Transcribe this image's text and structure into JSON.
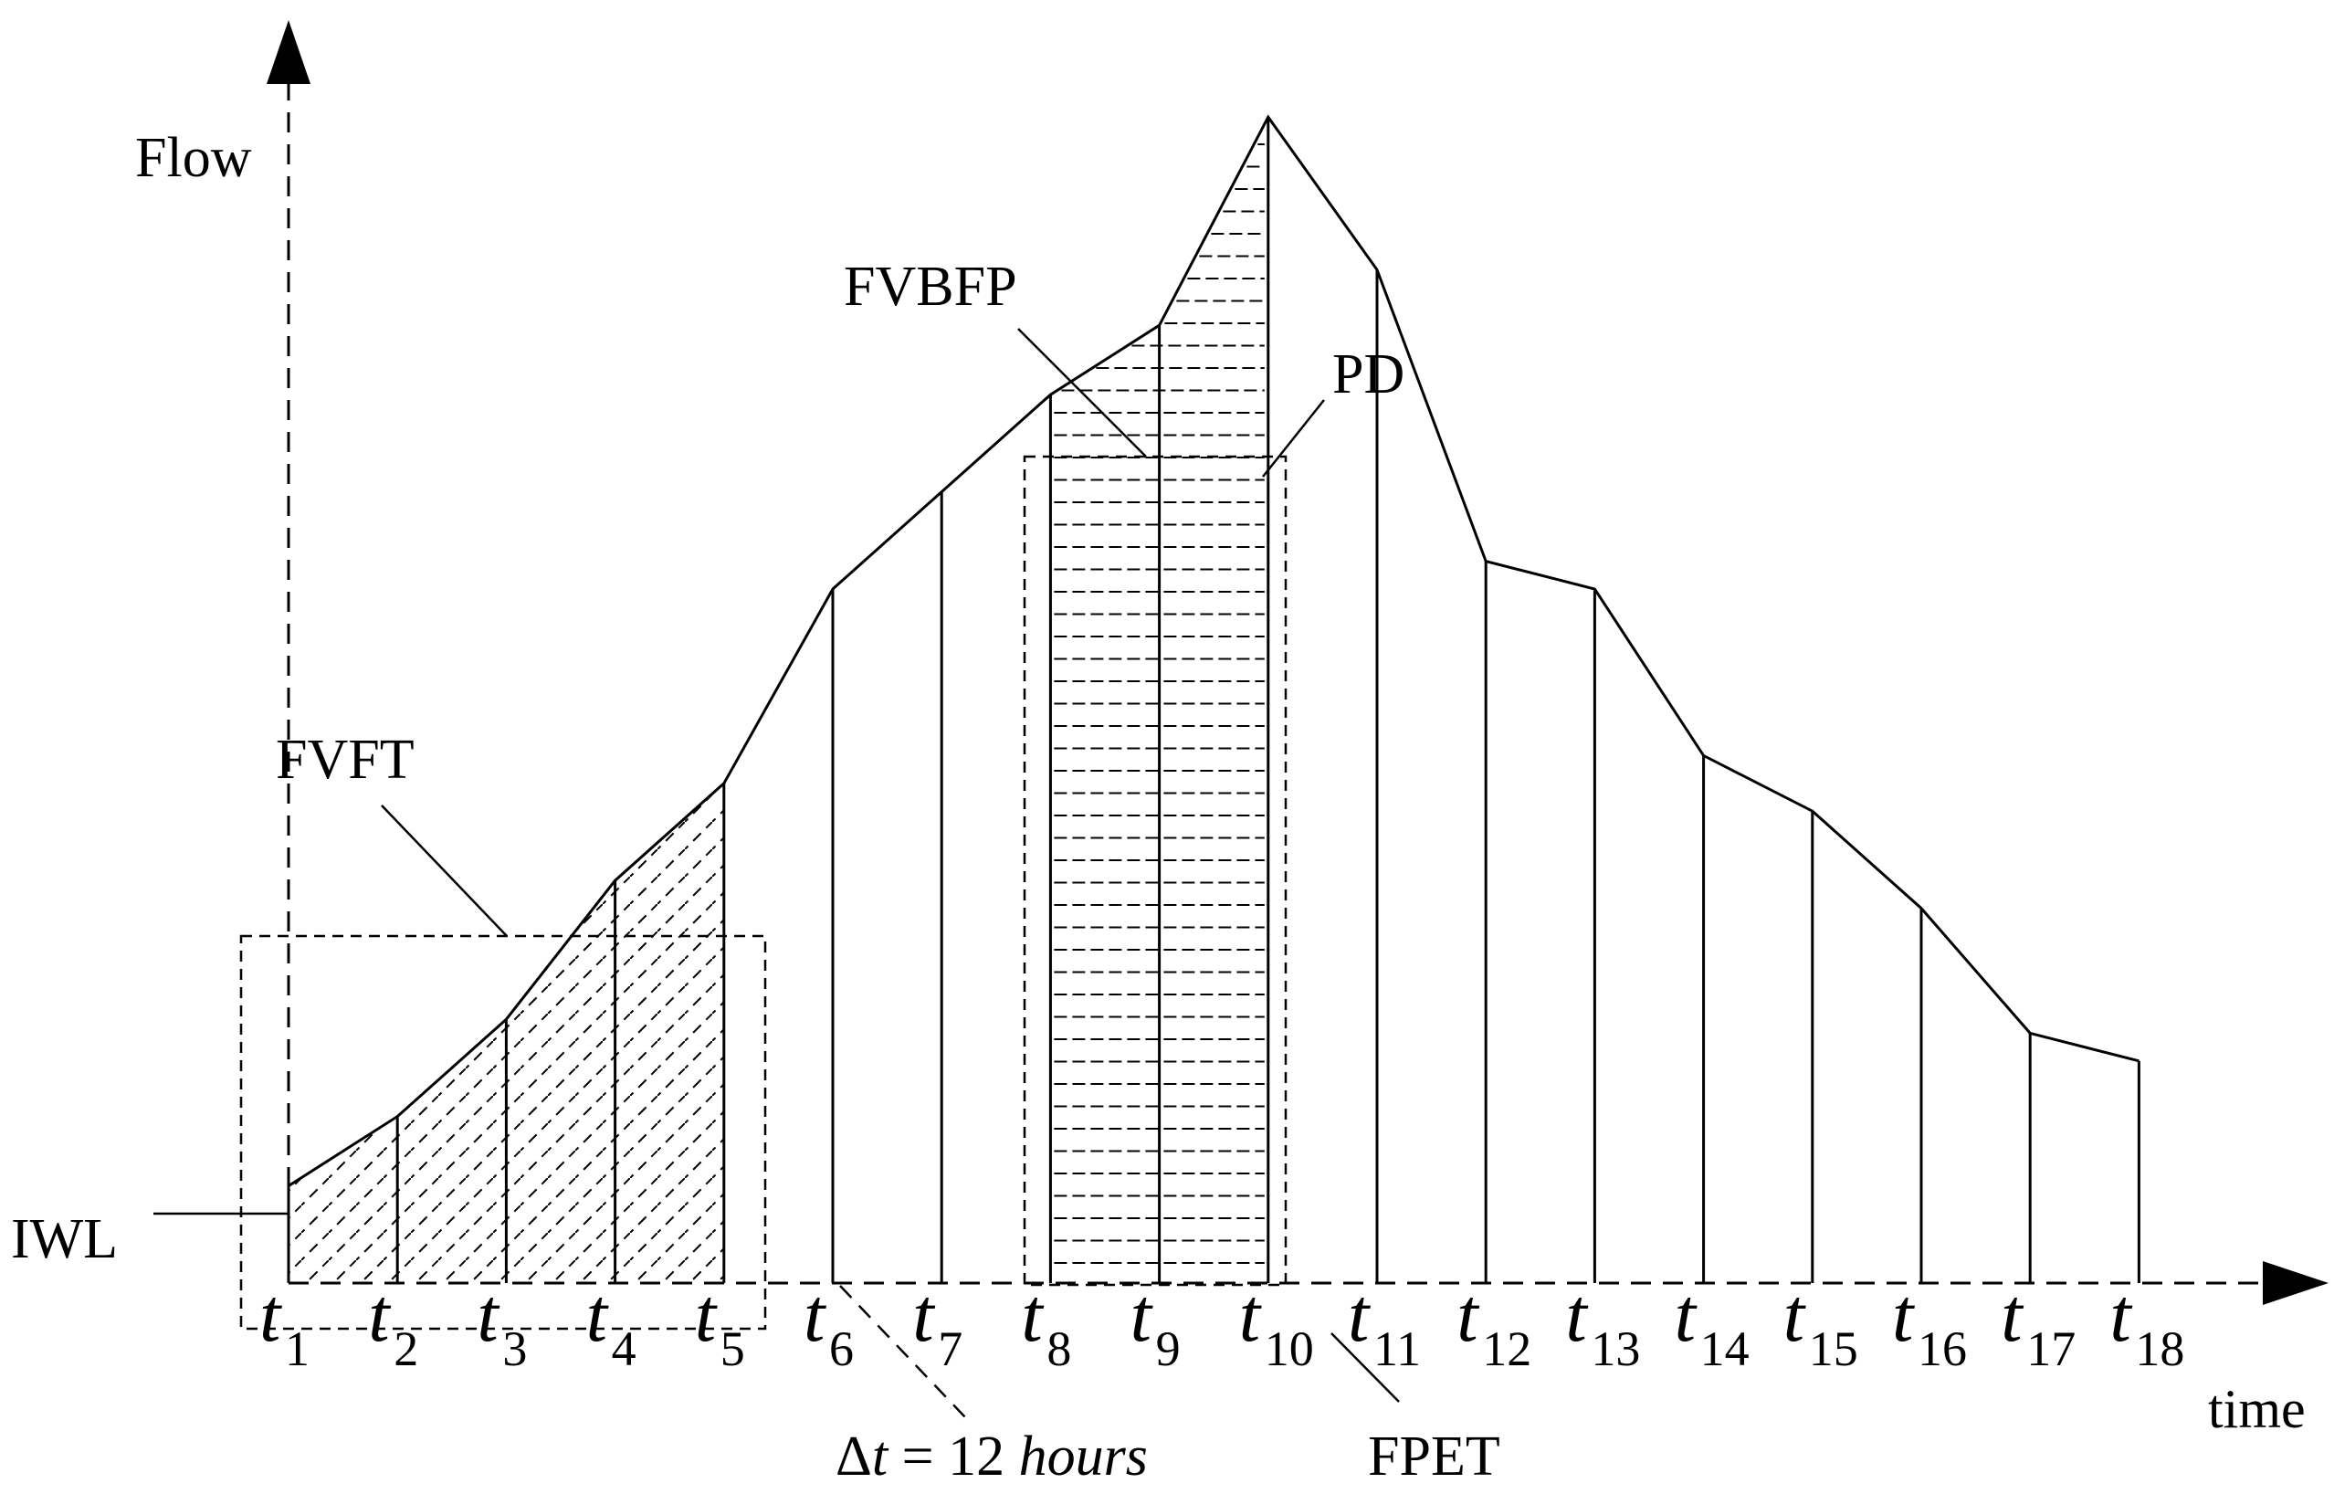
{
  "labels": {
    "y_axis": "Flow",
    "x_axis": "time",
    "iwl": "IWL",
    "fvft": "FVFT",
    "fvbfp": "FVBFP",
    "pd": "PD",
    "fpet": "FPET",
    "delta_symbol": "Δ",
    "delta_var": "t",
    "delta_eq": " = 12 ",
    "delta_unit": "hours"
  },
  "tick_symbol": "t",
  "ticks": [
    "1",
    "2",
    "3",
    "4",
    "5",
    "6",
    "7",
    "8",
    "9",
    "10",
    "11",
    "12",
    "13",
    "14",
    "15",
    "16",
    "17",
    "18"
  ],
  "flow_values": [
    7,
    12,
    19,
    29,
    36,
    50,
    57,
    64,
    69,
    84,
    73,
    52,
    50,
    38,
    34,
    27,
    18,
    16
  ]
}
